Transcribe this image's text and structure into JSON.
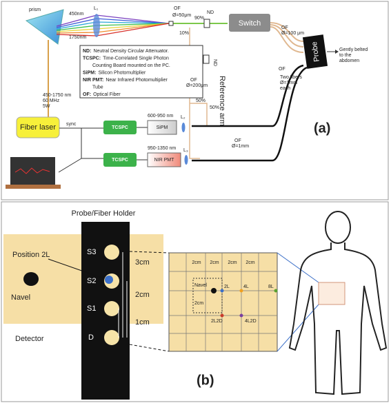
{
  "panel_a": {
    "prism": "prism",
    "beam_short": "450nm",
    "beam_long": "1750nm",
    "lens_1": "L₁",
    "of_1": "OF",
    "of_1_diameter": "Ø=50μm",
    "split_90": "90%",
    "split_10": "10%",
    "nd_1": "ND",
    "switch": "Switch",
    "of_2": "OF",
    "of_2_diameter": "Ø=100 μm",
    "probe": "Probe",
    "probe_note": [
      "Gently belted",
      "to the",
      "abdomen"
    ],
    "of_3": "OF",
    "of_3_note": [
      "Two fibers",
      "Ø=1mm",
      "each"
    ],
    "legend": [
      {
        "term": "ND:",
        "definition": "Neutral Density Circular Attenuator."
      },
      {
        "term": "TCSPC:",
        "definition": "Time-Correlated Single Photon"
      },
      {
        "term": "",
        "definition": "Counting Board mounted on the PC."
      },
      {
        "term": "SiPM:",
        "definition": "Silicon Photomultiplier"
      },
      {
        "term": "NIR PMT:",
        "definition": "Near Infrared Photomultiplier"
      },
      {
        "term": "",
        "definition": "Tube"
      },
      {
        "term": "OF:",
        "definition": "Optical Fiber"
      }
    ],
    "nd_2": "ND",
    "reference_arm": "Reference arm",
    "of_4": "OF",
    "of_4_diameter": "Ø=200μm",
    "split_50a": "50%",
    "split_50b": "50%",
    "laser_specs": [
      "450-1750 nm",
      "60 MHz",
      "5W"
    ],
    "fiber_laser": "Fiber laser",
    "sync": "sync",
    "tcspc_1": "TCSPC",
    "tcspc_2": "TCSPC",
    "band_1": "600-950 nm",
    "sipm": "SiPM",
    "lens_2": "L₂",
    "band_2": "950-1350 nm",
    "nir_pmt": "NIR PMT",
    "lens_3": "L₃",
    "of_5": "OF",
    "of_5_diameter": "Ø=1mm",
    "label": "(a)"
  },
  "panel_b": {
    "holder_title": "Probe/Fiber Holder",
    "position": "Position 2L",
    "navel": "Navel",
    "detector": "Detector",
    "s3": "S3",
    "s2": "S2",
    "s1": "S1",
    "d": "D",
    "dist_3": "3cm",
    "dist_2": "2cm",
    "dist_1": "1cm",
    "grid_top": [
      "2cm",
      "2cm",
      "2cm",
      "2cm"
    ],
    "grid_navel": "Navel",
    "grid_2l": "2L",
    "grid_4l": "4L",
    "grid_8l": "8L",
    "grid_side": "2cm",
    "grid_2l2d": "2L2D",
    "grid_4l2d": "4L2D",
    "label": "(b)"
  }
}
